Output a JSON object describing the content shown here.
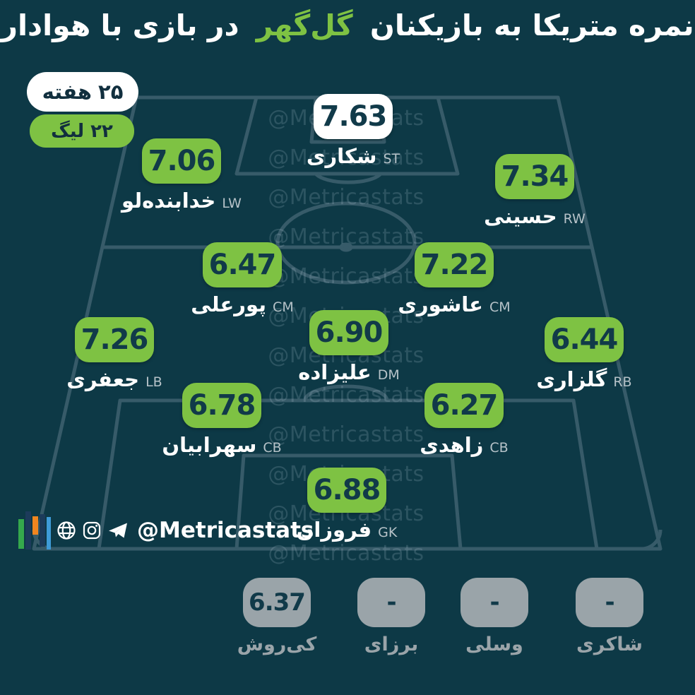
{
  "title": {
    "part1": "نمره متریکا به بازیکنان",
    "highlight": "گل‌گهر",
    "part2": "در بازی با هوادار"
  },
  "badges": {
    "week": {
      "label": "هفته",
      "value": "۲۵"
    },
    "league": {
      "label": "لیگ",
      "value": "۲۲"
    }
  },
  "watermark": "@Metricastats",
  "players": {
    "st": {
      "rating": "7.63",
      "name": "شکاری",
      "pos": "ST"
    },
    "lw": {
      "rating": "7.06",
      "name": "خدابنده‌لو",
      "pos": "LW"
    },
    "rw": {
      "rating": "7.34",
      "name": "حسینی",
      "pos": "RW"
    },
    "cm_left": {
      "rating": "6.47",
      "name": "پورعلی",
      "pos": "CM"
    },
    "cm_right": {
      "rating": "7.22",
      "name": "عاشوری",
      "pos": "CM"
    },
    "dm": {
      "rating": "6.90",
      "name": "علیزاده",
      "pos": "DM"
    },
    "lb": {
      "rating": "7.26",
      "name": "جعفری",
      "pos": "LB"
    },
    "rb": {
      "rating": "6.44",
      "name": "گلزاری",
      "pos": "RB"
    },
    "cb_left": {
      "rating": "6.78",
      "name": "سهرابیان",
      "pos": "CB"
    },
    "cb_right": {
      "rating": "6.27",
      "name": "زاهدی",
      "pos": "CB"
    },
    "gk": {
      "rating": "6.88",
      "name": "فروزان",
      "pos": "GK"
    }
  },
  "subs": [
    {
      "rating": "6.37",
      "name": "کی‌روش"
    },
    {
      "rating": "-",
      "name": "برزای"
    },
    {
      "rating": "-",
      "name": "وسلی"
    },
    {
      "rating": "-",
      "name": "شاکری"
    }
  ],
  "footer": {
    "handle": "@Metricastats"
  },
  "colors": {
    "background": "#0d3946",
    "accent_green": "#7ec243",
    "rating_text": "#113a49",
    "substitute_gray": "#9aa4a9",
    "pitch_line": "#3f6170",
    "white": "#ffffff"
  }
}
